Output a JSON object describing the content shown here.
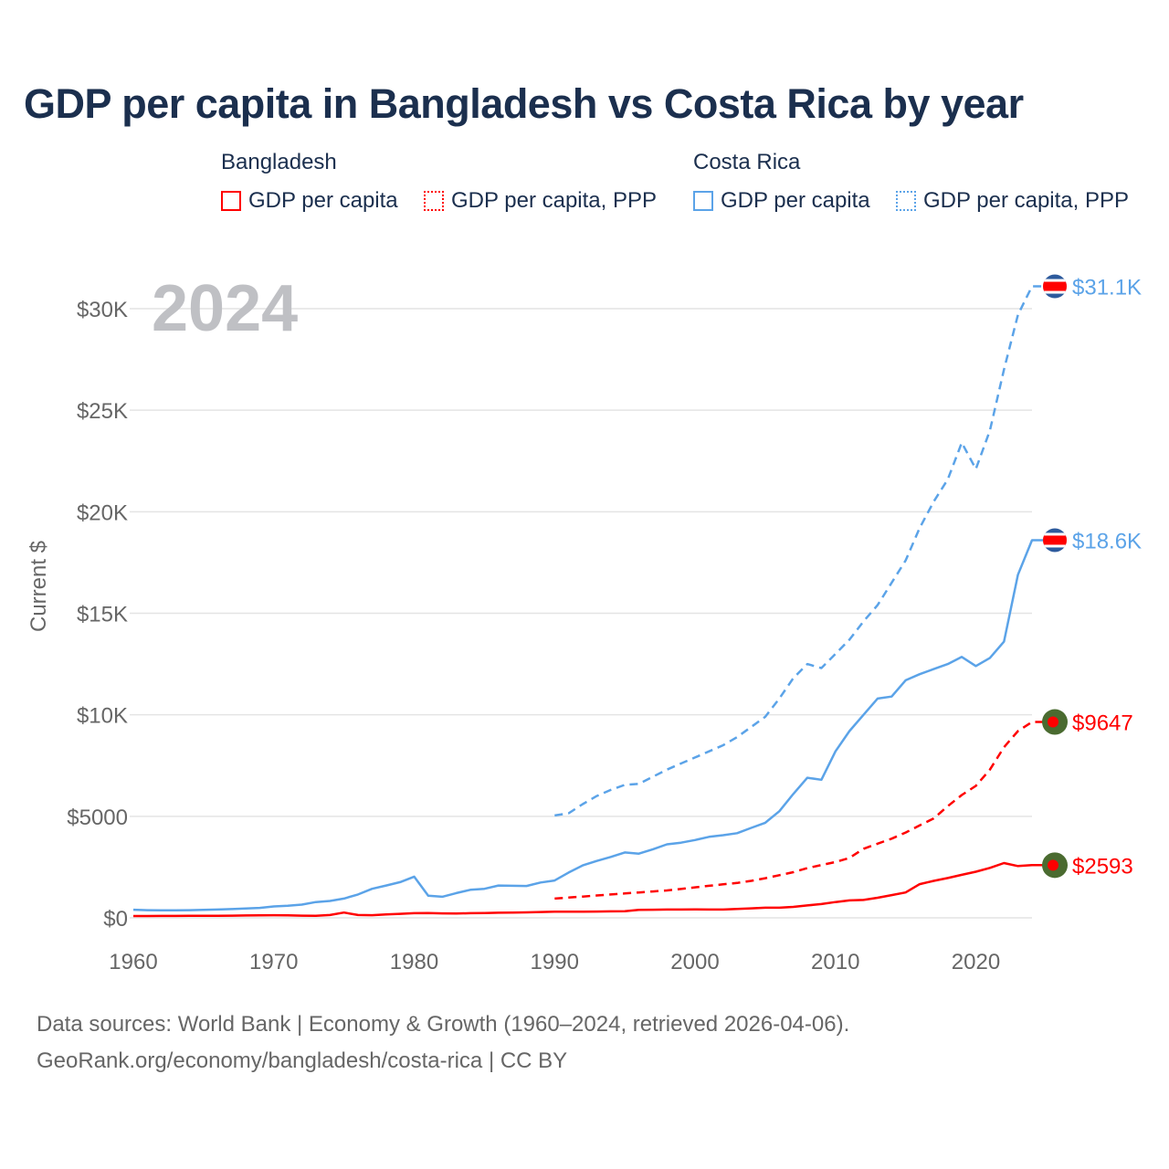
{
  "title": "GDP per capita in Bangladesh vs Costa Rica by year",
  "legend": {
    "groups": [
      {
        "name": "Bangladesh",
        "items": [
          {
            "label": "GDP per capita",
            "style": "solid"
          },
          {
            "label": "GDP per capita, PPP",
            "style": "dotted"
          }
        ],
        "color": "#ff0000"
      },
      {
        "name": "Costa Rica",
        "items": [
          {
            "label": "GDP per capita",
            "style": "solid"
          },
          {
            "label": "GDP per capita, PPP",
            "style": "dotted"
          }
        ],
        "color": "#5ba3e8"
      }
    ]
  },
  "year_watermark": "2024",
  "footer": {
    "line1": "Data sources: World Bank | Economy & Growth (1960–2024, retrieved 2026-04-06).",
    "line2": "GeoRank.org/economy/bangladesh/costa-rica | CC BY"
  },
  "chart_data": {
    "type": "line",
    "ylabel": "Current $",
    "xlim": [
      1960,
      2024
    ],
    "ylim": [
      0,
      30000
    ],
    "x_ticks": [
      1960,
      1970,
      1980,
      1990,
      2000,
      2010,
      2020
    ],
    "x_tick_labels": [
      "1960",
      "1970",
      "1980",
      "1990",
      "2000",
      "2010",
      "2020"
    ],
    "y_ticks": [
      0,
      5000,
      10000,
      15000,
      20000,
      25000,
      30000
    ],
    "y_tick_labels": [
      "$0",
      "$5000",
      "$10K",
      "$15K",
      "$20K",
      "$25K",
      "$30K"
    ],
    "grid": true,
    "series": [
      {
        "name": "Costa Rica GDP per capita, PPP",
        "country": "costa-rica",
        "color": "#5ba3e8",
        "dash": true,
        "start": 1990,
        "end_label": "$31.1K",
        "values": [
          5040,
          5150,
          5600,
          6000,
          6300,
          6550,
          6600,
          6950,
          7300,
          7600,
          7900,
          8200,
          8500,
          8900,
          9400,
          9900,
          10800,
          11800,
          12500,
          12300,
          13000,
          13700,
          14600,
          15400,
          16500,
          17600,
          19200,
          20500,
          21600,
          23400,
          22100,
          24000,
          27000,
          29700,
          31100
        ]
      },
      {
        "name": "Costa Rica GDP per capita",
        "country": "costa-rica",
        "color": "#5ba3e8",
        "dash": false,
        "start": 1960,
        "end_label": "$18.6K",
        "values": [
          400,
          380,
          370,
          370,
          380,
          390,
          410,
          430,
          460,
          490,
          560,
          600,
          650,
          780,
          830,
          950,
          1150,
          1430,
          1590,
          1760,
          2030,
          1090,
          1040,
          1220,
          1380,
          1430,
          1590,
          1580,
          1570,
          1740,
          1840,
          2230,
          2580,
          2800,
          3000,
          3220,
          3160,
          3380,
          3620,
          3700,
          3830,
          3990,
          4070,
          4170,
          4430,
          4680,
          5250,
          6100,
          6900,
          6800,
          8200,
          9200,
          10000,
          10800,
          10900,
          11700,
          12000,
          12250,
          12500,
          12850,
          12400,
          12800,
          13600,
          16900,
          18600
        ]
      },
      {
        "name": "Bangladesh GDP per capita, PPP",
        "country": "bangladesh",
        "color": "#ff0000",
        "dash": true,
        "start": 1990,
        "end_label": "$9647",
        "values": [
          950,
          1000,
          1050,
          1100,
          1150,
          1200,
          1250,
          1300,
          1350,
          1420,
          1500,
          1580,
          1650,
          1720,
          1820,
          1950,
          2100,
          2250,
          2450,
          2600,
          2750,
          2950,
          3400,
          3650,
          3900,
          4200,
          4550,
          4900,
          5500,
          6050,
          6500,
          7300,
          8400,
          9200,
          9647
        ]
      },
      {
        "name": "Bangladesh GDP per capita",
        "country": "bangladesh",
        "color": "#ff0000",
        "dash": false,
        "start": 1960,
        "end_label": "$2593",
        "values": [
          90,
          92,
          95,
          95,
          98,
          100,
          105,
          110,
          115,
          120,
          130,
          125,
          110,
          100,
          140,
          260,
          140,
          130,
          170,
          200,
          230,
          240,
          220,
          210,
          230,
          240,
          250,
          260,
          270,
          290,
          300,
          300,
          300,
          310,
          320,
          330,
          390,
          400,
          410,
          410,
          420,
          410,
          410,
          440,
          470,
          500,
          500,
          540,
          610,
          680,
          780,
          860,
          880,
          990,
          1120,
          1250,
          1660,
          1820,
          1960,
          2120,
          2270,
          2460,
          2700,
          2550,
          2593
        ]
      }
    ]
  }
}
